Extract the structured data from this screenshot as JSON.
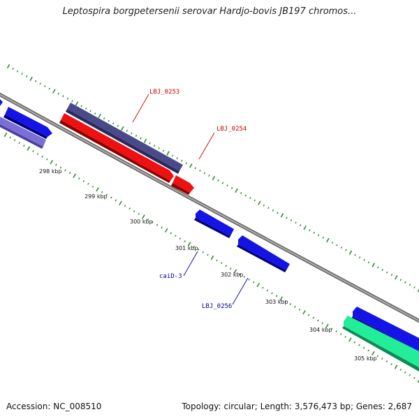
{
  "title": "Leptospira borgpetersenii serovar Hardjo-bovis JB197 chromos...",
  "accession": "Accession: NC_008510",
  "summary": "Topology: circular; Length: 3,576,473 bp; Genes: 2,687",
  "colors": {
    "backbone": "#8c8c8c",
    "tick": "#2e8b2e",
    "gene_blue": "#1414e6",
    "gene_red": "#ee1111",
    "gene_navy": "#4a4a8a",
    "gene_lavender": "#7b6fd6",
    "gene_green": "#22ee99",
    "label_red": "#cc0000",
    "label_blue": "#000099"
  },
  "ruler": {
    "labels": [
      {
        "text": "298 kbp"
      },
      {
        "text": "299 kbp"
      },
      {
        "text": "300 kbp"
      },
      {
        "text": "301 kbp"
      },
      {
        "text": "302 kbp"
      },
      {
        "text": "303 kbp"
      },
      {
        "text": "304 kbp"
      },
      {
        "text": "305 kbp"
      }
    ]
  },
  "gene_labels": [
    {
      "text": "LBJ_0253",
      "color": "#cc0000"
    },
    {
      "text": "LBJ_0254",
      "color": "#cc0000"
    },
    {
      "text": "caiD-3",
      "color": "#000099"
    },
    {
      "text": "LBJ_0256",
      "color": "#000099"
    }
  ]
}
